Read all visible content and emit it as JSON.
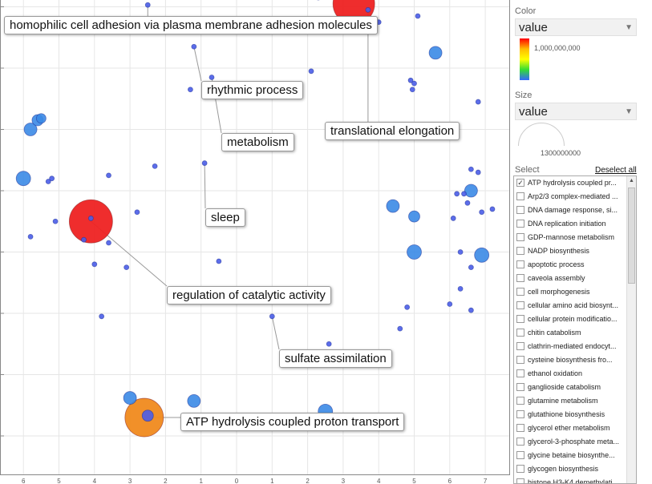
{
  "chart_data": {
    "type": "scatter",
    "title": "",
    "xlabel": "",
    "ylabel": "",
    "grid": true,
    "xlim": [
      -6.3,
      7.5
    ],
    "ylim": [
      -6.0,
      1.8
    ],
    "x_ticks": [
      -6,
      -5,
      -4,
      -3,
      -2,
      -1,
      0,
      1,
      2,
      3,
      4,
      5,
      6,
      7
    ],
    "x_tick_labels": [
      "6",
      "5",
      "4",
      "3",
      "2",
      "1",
      "0",
      "1",
      "2",
      "3",
      "4",
      "5",
      "6",
      "7"
    ],
    "y_ticks": [
      1,
      0,
      -1,
      -2,
      -3,
      -4,
      -5,
      -6
    ],
    "color_scale": {
      "min_color": "#3a55e0",
      "mid_color": "#ffe600",
      "max_color": "#ff1a1a",
      "max_label": "1,000,000,000"
    },
    "points": [
      {
        "x": 3.3,
        "y": 1.05,
        "size": 26,
        "color": "#ee2222"
      },
      {
        "x": -4.1,
        "y": -2.5,
        "size": 27,
        "color": "#ee2222"
      },
      {
        "x": -2.6,
        "y": -5.7,
        "size": 24,
        "color": "#f08a1e"
      },
      {
        "x": 5.6,
        "y": 0.25,
        "size": 8,
        "color": "#3b8ae6"
      },
      {
        "x": -6.0,
        "y": -1.8,
        "size": 9,
        "color": "#3b8ae6"
      },
      {
        "x": -5.8,
        "y": -1.0,
        "size": 8,
        "color": "#3b8ae6"
      },
      {
        "x": -5.6,
        "y": -0.85,
        "size": 7,
        "color": "#3b8ae6"
      },
      {
        "x": -5.5,
        "y": -0.82,
        "size": 6,
        "color": "#3b8ae6"
      },
      {
        "x": 4.4,
        "y": -2.25,
        "size": 8,
        "color": "#3b8ae6"
      },
      {
        "x": 5.0,
        "y": -2.42,
        "size": 7,
        "color": "#3b8ae6"
      },
      {
        "x": 5.0,
        "y": -3.0,
        "size": 9,
        "color": "#3b8ae6"
      },
      {
        "x": 6.6,
        "y": -2.0,
        "size": 8,
        "color": "#3b8ae6"
      },
      {
        "x": 6.9,
        "y": -3.05,
        "size": 9,
        "color": "#3b8ae6"
      },
      {
        "x": -3.0,
        "y": -5.38,
        "size": 8,
        "color": "#3b8ae6"
      },
      {
        "x": -1.2,
        "y": -5.43,
        "size": 8,
        "color": "#3b8ae6"
      },
      {
        "x": 2.5,
        "y": -5.6,
        "size": 9,
        "color": "#3b8ae6"
      },
      {
        "x": -2.5,
        "y": -5.67,
        "size": 7,
        "color": "#4a5de8"
      },
      {
        "x": -2.5,
        "y": 1.03,
        "size": 3,
        "color": "#4a5de8"
      },
      {
        "x": -1.2,
        "y": 0.35,
        "size": 3,
        "color": "#4a5de8"
      },
      {
        "x": -0.7,
        "y": -0.15,
        "size": 3,
        "color": "#4a5de8"
      },
      {
        "x": -2.3,
        "y": -1.6,
        "size": 3,
        "color": "#4a5de8"
      },
      {
        "x": -0.9,
        "y": -1.55,
        "size": 3,
        "color": "#4a5de8"
      },
      {
        "x": -4.1,
        "y": -2.45,
        "size": 3,
        "color": "#4a5de8"
      },
      {
        "x": -5.1,
        "y": -2.5,
        "size": 3,
        "color": "#4a5de8"
      },
      {
        "x": 2.3,
        "y": 1.4,
        "size": 3,
        "color": "#4a5de8"
      },
      {
        "x": 2.3,
        "y": 1.15,
        "size": 3,
        "color": "#4a5de8"
      },
      {
        "x": 3.7,
        "y": 0.95,
        "size": 3,
        "color": "#4a5de8"
      },
      {
        "x": 4.0,
        "y": 0.75,
        "size": 3,
        "color": "#4a5de8"
      },
      {
        "x": 5.1,
        "y": 0.85,
        "size": 3,
        "color": "#4a5de8"
      },
      {
        "x": -2.6,
        "y": 0.6,
        "size": 3,
        "color": "#4a5de8"
      },
      {
        "x": -1.3,
        "y": -0.35,
        "size": 3,
        "color": "#4a5de8"
      },
      {
        "x": 2.1,
        "y": -0.05,
        "size": 3,
        "color": "#4a5de8"
      },
      {
        "x": 4.9,
        "y": -0.2,
        "size": 3,
        "color": "#4a5de8"
      },
      {
        "x": 5.0,
        "y": -0.25,
        "size": 3,
        "color": "#4a5de8"
      },
      {
        "x": 4.95,
        "y": -0.35,
        "size": 3,
        "color": "#4a5de8"
      },
      {
        "x": 6.8,
        "y": -0.55,
        "size": 3,
        "color": "#4a5de8"
      },
      {
        "x": -5.3,
        "y": -1.85,
        "size": 3,
        "color": "#4a5de8"
      },
      {
        "x": -5.2,
        "y": -1.8,
        "size": 3,
        "color": "#4a5de8"
      },
      {
        "x": -3.6,
        "y": -1.75,
        "size": 3,
        "color": "#4a5de8"
      },
      {
        "x": 6.6,
        "y": -1.65,
        "size": 3,
        "color": "#4a5de8"
      },
      {
        "x": 6.8,
        "y": -1.7,
        "size": 3,
        "color": "#4a5de8"
      },
      {
        "x": 6.2,
        "y": -2.05,
        "size": 3,
        "color": "#4a5de8"
      },
      {
        "x": 6.4,
        "y": -2.05,
        "size": 3,
        "color": "#4a5de8"
      },
      {
        "x": 6.5,
        "y": -2.2,
        "size": 3,
        "color": "#4a5de8"
      },
      {
        "x": 6.9,
        "y": -2.35,
        "size": 3,
        "color": "#4a5de8"
      },
      {
        "x": 7.2,
        "y": -2.3,
        "size": 3,
        "color": "#4a5de8"
      },
      {
        "x": 6.1,
        "y": -2.45,
        "size": 3,
        "color": "#4a5de8"
      },
      {
        "x": -2.8,
        "y": -2.35,
        "size": 3,
        "color": "#4a5de8"
      },
      {
        "x": -5.8,
        "y": -2.75,
        "size": 3,
        "color": "#4a5de8"
      },
      {
        "x": -4.3,
        "y": -2.8,
        "size": 3,
        "color": "#4a5de8"
      },
      {
        "x": -3.6,
        "y": -2.85,
        "size": 3,
        "color": "#4a5de8"
      },
      {
        "x": 6.3,
        "y": -3.0,
        "size": 3,
        "color": "#4a5de8"
      },
      {
        "x": -4.0,
        "y": -3.2,
        "size": 3,
        "color": "#4a5de8"
      },
      {
        "x": -3.1,
        "y": -3.25,
        "size": 3,
        "color": "#4a5de8"
      },
      {
        "x": -0.5,
        "y": -3.15,
        "size": 3,
        "color": "#4a5de8"
      },
      {
        "x": 6.6,
        "y": -3.25,
        "size": 3,
        "color": "#4a5de8"
      },
      {
        "x": 6.3,
        "y": -3.6,
        "size": 3,
        "color": "#4a5de8"
      },
      {
        "x": 4.8,
        "y": -3.9,
        "size": 3,
        "color": "#4a5de8"
      },
      {
        "x": 6.0,
        "y": -3.85,
        "size": 3,
        "color": "#4a5de8"
      },
      {
        "x": 6.6,
        "y": -3.95,
        "size": 3,
        "color": "#4a5de8"
      },
      {
        "x": -3.8,
        "y": -4.05,
        "size": 3,
        "color": "#4a5de8"
      },
      {
        "x": 1.0,
        "y": -4.05,
        "size": 3,
        "color": "#4a5de8"
      },
      {
        "x": 4.6,
        "y": -4.25,
        "size": 3,
        "color": "#4a5de8"
      },
      {
        "x": 2.6,
        "y": -4.5,
        "size": 3,
        "color": "#4a5de8"
      }
    ],
    "labels": [
      {
        "text": "homophilic cell adhesion via plasma membrane adhesion molecules",
        "x": -2.5,
        "y": 1.03
      },
      {
        "text": "rhythmic process",
        "x": -1.2,
        "y": 0.35
      },
      {
        "text": "translational elongation",
        "x": 3.7,
        "y": 0.95
      },
      {
        "text": "metabolism",
        "x": -0.7,
        "y": -0.15
      },
      {
        "text": "sleep",
        "x": -0.9,
        "y": -1.55
      },
      {
        "text": "regulation of catalytic activity",
        "x": -4.1,
        "y": -2.5
      },
      {
        "text": "sulfate assimilation",
        "x": 1.0,
        "y": -4.05
      },
      {
        "text": "ATP hydrolysis coupled proton transport",
        "x": -2.6,
        "y": -5.7
      }
    ]
  },
  "panel": {
    "color_label": "Color",
    "color_value": "value",
    "color_max": "1,000,000,000",
    "size_label": "Size",
    "size_value": "value",
    "size_max": "1300000000",
    "select_label": "Select",
    "deselect_all": "Deselect all",
    "items": [
      {
        "label": "ATP hydrolysis coupled pr...",
        "checked": true
      },
      {
        "label": "Arp2/3 complex-mediated ...",
        "checked": false
      },
      {
        "label": "DNA damage response, si...",
        "checked": false
      },
      {
        "label": "DNA replication initiation",
        "checked": false
      },
      {
        "label": "GDP-mannose metabolism",
        "checked": false
      },
      {
        "label": "NADP biosynthesis",
        "checked": false
      },
      {
        "label": "apoptotic process",
        "checked": false
      },
      {
        "label": "caveola assembly",
        "checked": false
      },
      {
        "label": "cell morphogenesis",
        "checked": false
      },
      {
        "label": "cellular amino acid biosynt...",
        "checked": false
      },
      {
        "label": "cellular protein modificatio...",
        "checked": false
      },
      {
        "label": "chitin catabolism",
        "checked": false
      },
      {
        "label": "clathrin-mediated endocyt...",
        "checked": false
      },
      {
        "label": "cysteine biosynthesis fro...",
        "checked": false
      },
      {
        "label": "ethanol oxidation",
        "checked": false
      },
      {
        "label": "ganglioside catabolism",
        "checked": false
      },
      {
        "label": "glutamine metabolism",
        "checked": false
      },
      {
        "label": "glutathione biosynthesis",
        "checked": false
      },
      {
        "label": "glycerol ether metabolism",
        "checked": false
      },
      {
        "label": "glycerol-3-phosphate meta...",
        "checked": false
      },
      {
        "label": "glycine betaine biosynthe...",
        "checked": false
      },
      {
        "label": "glycogen biosynthesis",
        "checked": false
      },
      {
        "label": "histone H3-K4 demethylati...",
        "checked": false
      }
    ]
  }
}
